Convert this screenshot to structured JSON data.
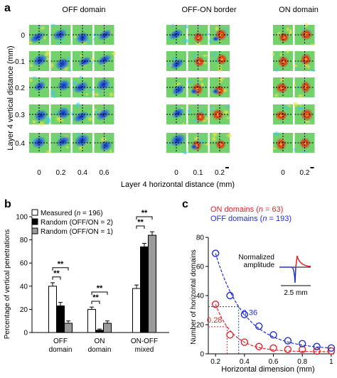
{
  "chart_data": [
    {
      "panel": "a",
      "type": "heatmap",
      "groups": [
        {
          "title": "OFF domain",
          "x_ticks": [
            "0",
            "0.2",
            "0.4",
            "0.6"
          ],
          "cells": "blue-dominant",
          "scale_bar": false
        },
        {
          "title": "OFF-ON border",
          "x_ticks": [
            "0",
            "0.1",
            "0.2"
          ],
          "cells": "mixed",
          "scale_bar": true
        },
        {
          "title": "ON domain",
          "x_ticks": [
            "0",
            "0.2"
          ],
          "cells": "red-dominant",
          "scale_bar": true
        }
      ],
      "y_ticks": [
        "0",
        "0.1",
        "0.2",
        "0.3",
        "0.4"
      ],
      "xlabel": "Layer 4 horizontal distance (mm)",
      "ylabel": "Layer 4 vertical distance (mm)",
      "colors": {
        "background": "#72d26c",
        "on": "#e02c12",
        "off": "#2450d8"
      }
    },
    {
      "panel": "b",
      "type": "bar",
      "categories": [
        [
          "OFF",
          "domain"
        ],
        [
          "ON",
          "domain"
        ],
        [
          "ON-OFF",
          "mixed"
        ]
      ],
      "series": [
        {
          "name": "Measured (n = 196)",
          "legend": [
            "Measured (",
            "n",
            " = 196)"
          ],
          "values": [
            40,
            20,
            38
          ],
          "errors": [
            3,
            2,
            3
          ],
          "color": "#ffffff"
        },
        {
          "name": "Random (OFF/ON = 2)",
          "legend": [
            "Random (OFF/ON = 2)"
          ],
          "values": [
            23,
            2,
            74
          ],
          "errors": [
            3,
            1,
            3
          ],
          "color": "#000000"
        },
        {
          "name": "Random (OFF/ON = 1)",
          "legend": [
            "Random (OFF/ON = 1)"
          ],
          "values": [
            8,
            8,
            84
          ],
          "errors": [
            2,
            2,
            3
          ],
          "color": "#9a9a9a"
        }
      ],
      "significance": [
        {
          "category": 0,
          "from": 0,
          "to": 1,
          "label": "**"
        },
        {
          "category": 0,
          "from": 0,
          "to": 2,
          "label": "**"
        },
        {
          "category": 1,
          "from": 0,
          "to": 1,
          "label": "**"
        },
        {
          "category": 1,
          "from": 0,
          "to": 2,
          "label": "**"
        },
        {
          "category": 2,
          "from": 0,
          "to": 1,
          "label": "**"
        },
        {
          "category": 2,
          "from": 0,
          "to": 2,
          "label": "**"
        }
      ],
      "ylabel": "Percentage of vertical penetrations",
      "ylim": [
        0,
        100
      ],
      "yticks": [
        0,
        20,
        40,
        60,
        80,
        100
      ],
      "legend_position": "top-left"
    },
    {
      "panel": "c",
      "type": "scatter",
      "series": [
        {
          "name": "ON domains (n = 63)",
          "legend": [
            "ON domains (",
            "n",
            " = 63)"
          ],
          "color": "#e8222a",
          "x": [
            0.2,
            0.3,
            0.4,
            0.5,
            0.6,
            0.7,
            0.8,
            0.9,
            1.0
          ],
          "y": [
            34,
            13,
            8,
            5,
            4,
            3,
            3,
            2,
            2
          ],
          "fit_x50": 0.28,
          "fit_label": "0.28",
          "fit_label_position": "left"
        },
        {
          "name": "OFF domains (n = 193)",
          "legend": [
            "OFF domains (",
            "n",
            " = 193)"
          ],
          "color": "#1f2fd6",
          "x": [
            0.2,
            0.3,
            0.4,
            0.5,
            0.6,
            0.7,
            0.8,
            0.9,
            1.0
          ],
          "y": [
            69,
            40,
            27,
            19,
            13,
            9,
            7,
            5,
            4
          ],
          "fit_x50": 0.36,
          "fit_label": "0.36",
          "fit_label_position": "right"
        }
      ],
      "xlabel": "Horizontal dimension (mm)",
      "ylabel": "Number of horizontal domains",
      "xlim": [
        0.15,
        1.02
      ],
      "ylim": [
        0,
        80
      ],
      "xticks": [
        "0.2",
        "0.4",
        "0.6",
        "0.8",
        "1"
      ],
      "yticks": [
        0,
        20,
        40,
        60,
        80
      ],
      "inset": {
        "ylabel": [
          "Normalized",
          "amplitude"
        ],
        "xlabel": "2.5 mm"
      },
      "legend_position": "top-left"
    }
  ]
}
